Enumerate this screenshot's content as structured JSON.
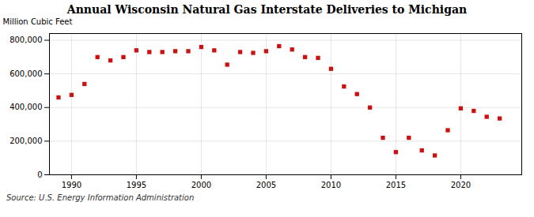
{
  "chart_data": {
    "type": "scatter",
    "title": "Annual Wisconsin Natural Gas Interstate Deliveries to Michigan",
    "ylabel": "Million Cubic Feet",
    "source": "Source: U.S. Energy Information Administration",
    "x": [
      1989,
      1990,
      1991,
      1992,
      1993,
      1994,
      1995,
      1996,
      1997,
      1998,
      1999,
      2000,
      2001,
      2002,
      2003,
      2004,
      2005,
      2006,
      2007,
      2008,
      2009,
      2010,
      2011,
      2012,
      2013,
      2014,
      2015,
      2016,
      2017,
      2018,
      2019,
      2020,
      2021,
      2022,
      2023
    ],
    "values": [
      460000,
      475000,
      540000,
      700000,
      680000,
      700000,
      740000,
      730000,
      730000,
      735000,
      735000,
      760000,
      740000,
      655000,
      730000,
      725000,
      735000,
      765000,
      745000,
      700000,
      695000,
      630000,
      525000,
      480000,
      400000,
      220000,
      135000,
      220000,
      145000,
      115000,
      265000,
      395000,
      380000,
      345000,
      335000
    ],
    "color": "#cc1111",
    "marker": "square",
    "xlim": [
      1988.3,
      2024.7
    ],
    "ylim": [
      0,
      840000
    ],
    "xticks": [
      1990,
      1995,
      2000,
      2005,
      2010,
      2015,
      2020
    ],
    "yticks": [
      0,
      {
        "value": 200000,
        "label": "200,000"
      },
      {
        "value": 400000,
        "label": "400,000"
      },
      {
        "value": 600000,
        "label": "600,000"
      },
      {
        "value": 800000,
        "label": "800,000"
      }
    ],
    "grid": true
  }
}
